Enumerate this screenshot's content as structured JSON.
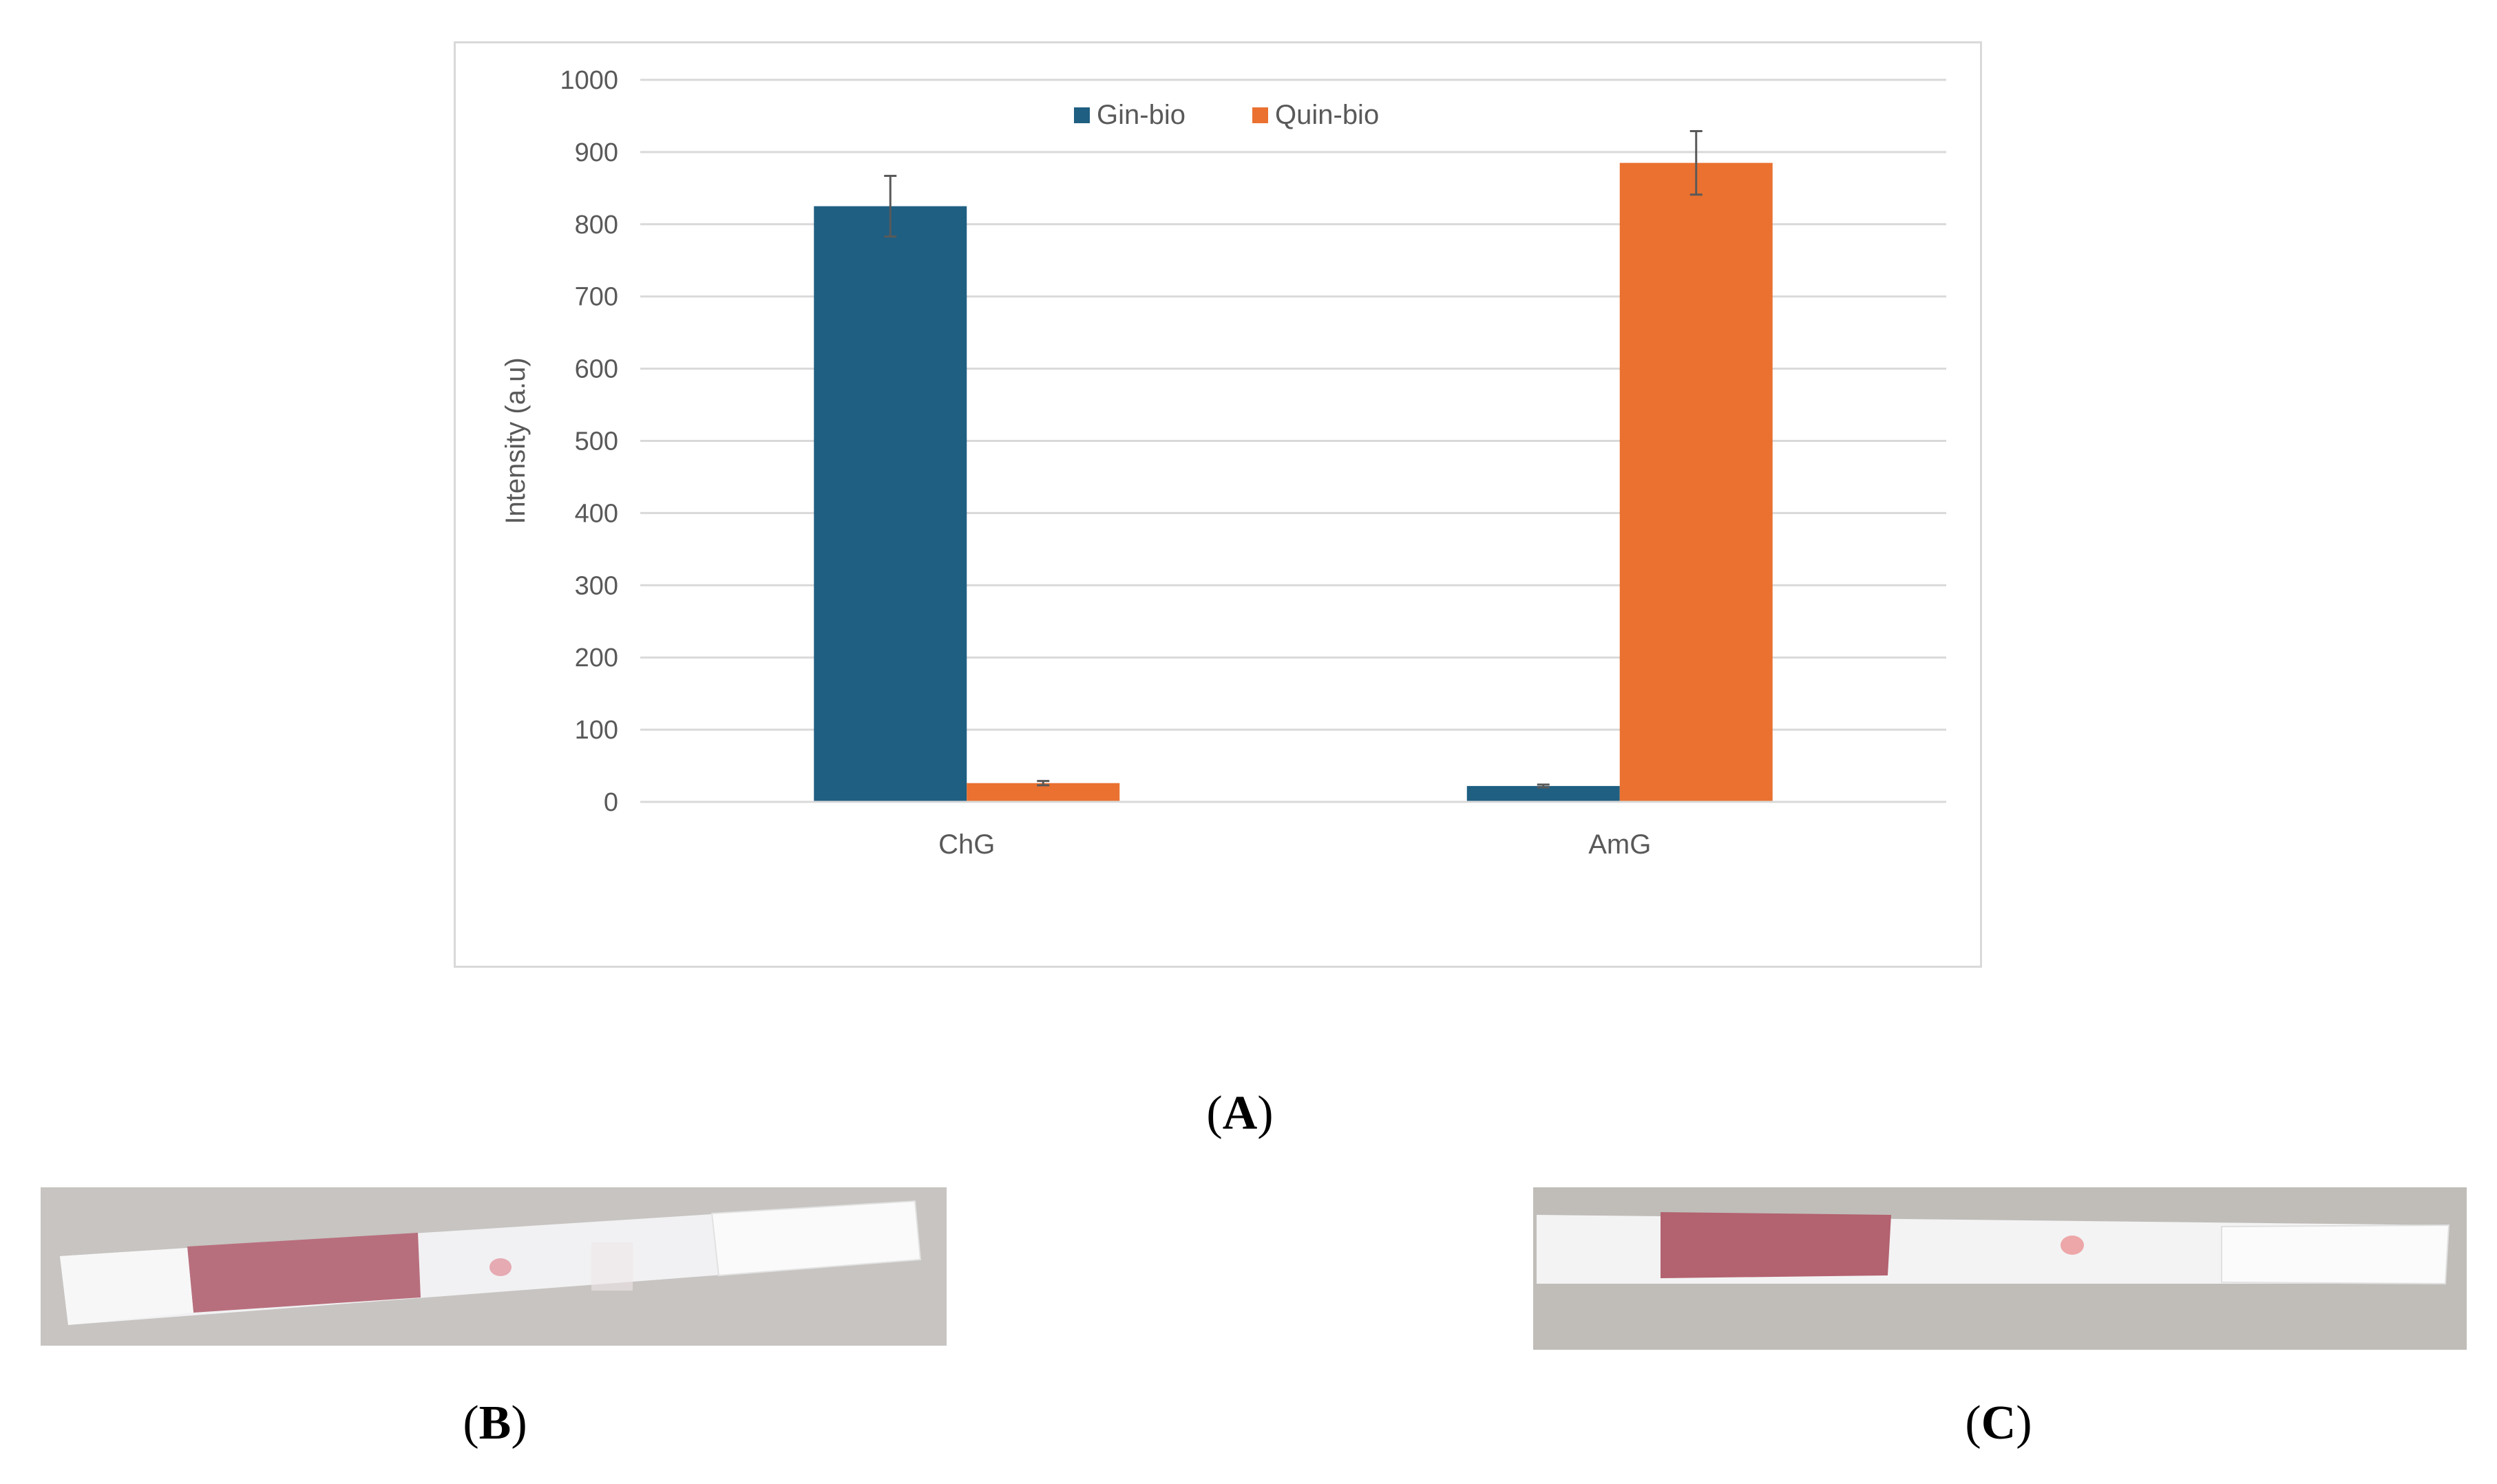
{
  "chart_data": {
    "type": "bar",
    "categories": [
      "ChG",
      "AmG"
    ],
    "series": [
      {
        "name": "Gin-bio",
        "color": "#1f5f82",
        "values": [
          825,
          22
        ],
        "errors": [
          42,
          2
        ]
      },
      {
        "name": "Quin-bio",
        "color": "#ea7130",
        "values": [
          26,
          885
        ],
        "errors": [
          3,
          44
        ]
      }
    ],
    "ylabel": "Intensity (a.u)",
    "xlabel": "",
    "ylim": [
      0,
      1000
    ],
    "yticks": [
      0,
      100,
      200,
      300,
      400,
      500,
      600,
      700,
      800,
      900,
      1000
    ],
    "grid": true,
    "legend": "top-center"
  },
  "panels": {
    "a": "A",
    "b": "B",
    "c": "C"
  },
  "photos": {
    "strip_b": {
      "pad_color": "#b86f7d",
      "dot_color": "#e6aab2",
      "background": "#c7c4c1"
    },
    "strip_c": {
      "pad_color": "#b3626f",
      "dot_color": "#eda7a8",
      "background": "#c0bdb9"
    }
  }
}
